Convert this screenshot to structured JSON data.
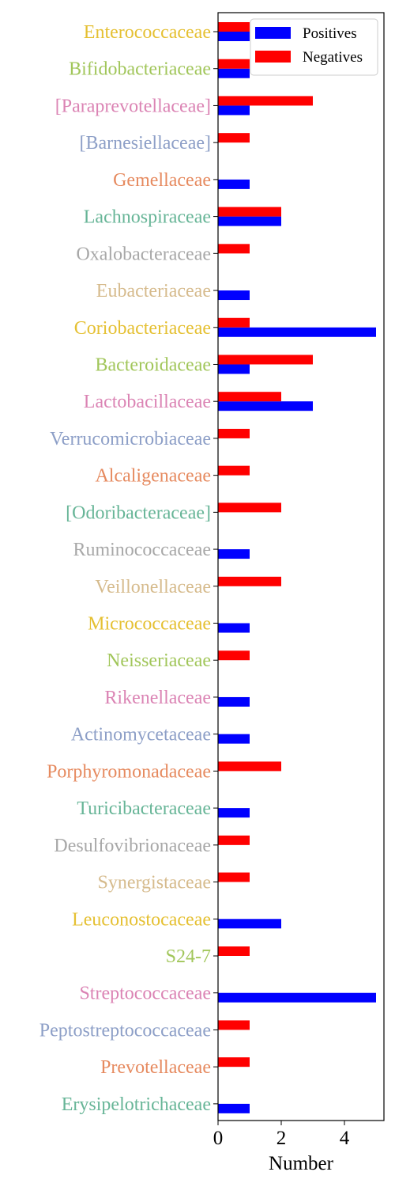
{
  "chart_data": {
    "type": "bar",
    "orientation": "horizontal",
    "categories": [
      "Enterococcaceae",
      "Bifidobacteriaceae",
      "[Paraprevotellaceae]",
      "[Barnesiellaceae]",
      "Gemellaceae",
      "Lachnospiraceae",
      "Oxalobacteraceae",
      "Eubacteriaceae",
      "Coriobacteriaceae",
      "Bacteroidaceae",
      "Lactobacillaceae",
      "Verrucomicrobiaceae",
      "Alcaligenaceae",
      "[Odoribacteraceae]",
      "Ruminococcaceae",
      "Veillonellaceae",
      "Micrococcaceae",
      "Neisseriaceae",
      "Rikenellaceae",
      "Actinomycetaceae",
      "Porphyromonadaceae",
      "Turicibacteraceae",
      "Desulfovibrionaceae",
      "Synergistaceae",
      "Leuconostocaceae",
      "S24-7",
      "Streptococcaceae",
      "Peptostreptococcaceae",
      "Prevotellaceae",
      "Erysipelotrichaceae"
    ],
    "label_colors": [
      "#e5c032",
      "#a1c65a",
      "#db84b4",
      "#8d9fc7",
      "#e68a5f",
      "#67b597",
      "#a8a8a8",
      "#d6bb8d",
      "#e5c032",
      "#a1c65a",
      "#db84b4",
      "#8d9fc7",
      "#e68a5f",
      "#67b597",
      "#a8a8a8",
      "#d6bb8d",
      "#e5c032",
      "#a1c65a",
      "#db84b4",
      "#8d9fc7",
      "#e68a5f",
      "#67b597",
      "#a8a8a8",
      "#d6bb8d",
      "#e5c032",
      "#a1c65a",
      "#db84b4",
      "#8d9fc7",
      "#e68a5f",
      "#67b597"
    ],
    "series": [
      {
        "name": "Positives",
        "color": "#0000ff",
        "values": [
          1,
          1,
          1,
          0,
          1,
          2,
          0,
          1,
          5,
          1,
          3,
          0,
          0,
          0,
          1,
          0,
          1,
          0,
          1,
          1,
          0,
          1,
          0,
          0,
          2,
          0,
          5,
          0,
          0,
          1
        ]
      },
      {
        "name": "Negatives",
        "color": "#ff0000",
        "values": [
          1,
          1,
          3,
          1,
          0,
          2,
          1,
          0,
          1,
          3,
          2,
          1,
          1,
          2,
          0,
          2,
          0,
          1,
          0,
          0,
          2,
          0,
          1,
          1,
          0,
          1,
          0,
          1,
          1,
          0
        ]
      }
    ],
    "xlabel": "Number",
    "ylabel": "",
    "xlim": [
      0,
      5.25
    ],
    "xticks": [
      0,
      2,
      4
    ],
    "legend_position": "top-right",
    "grid": false
  }
}
